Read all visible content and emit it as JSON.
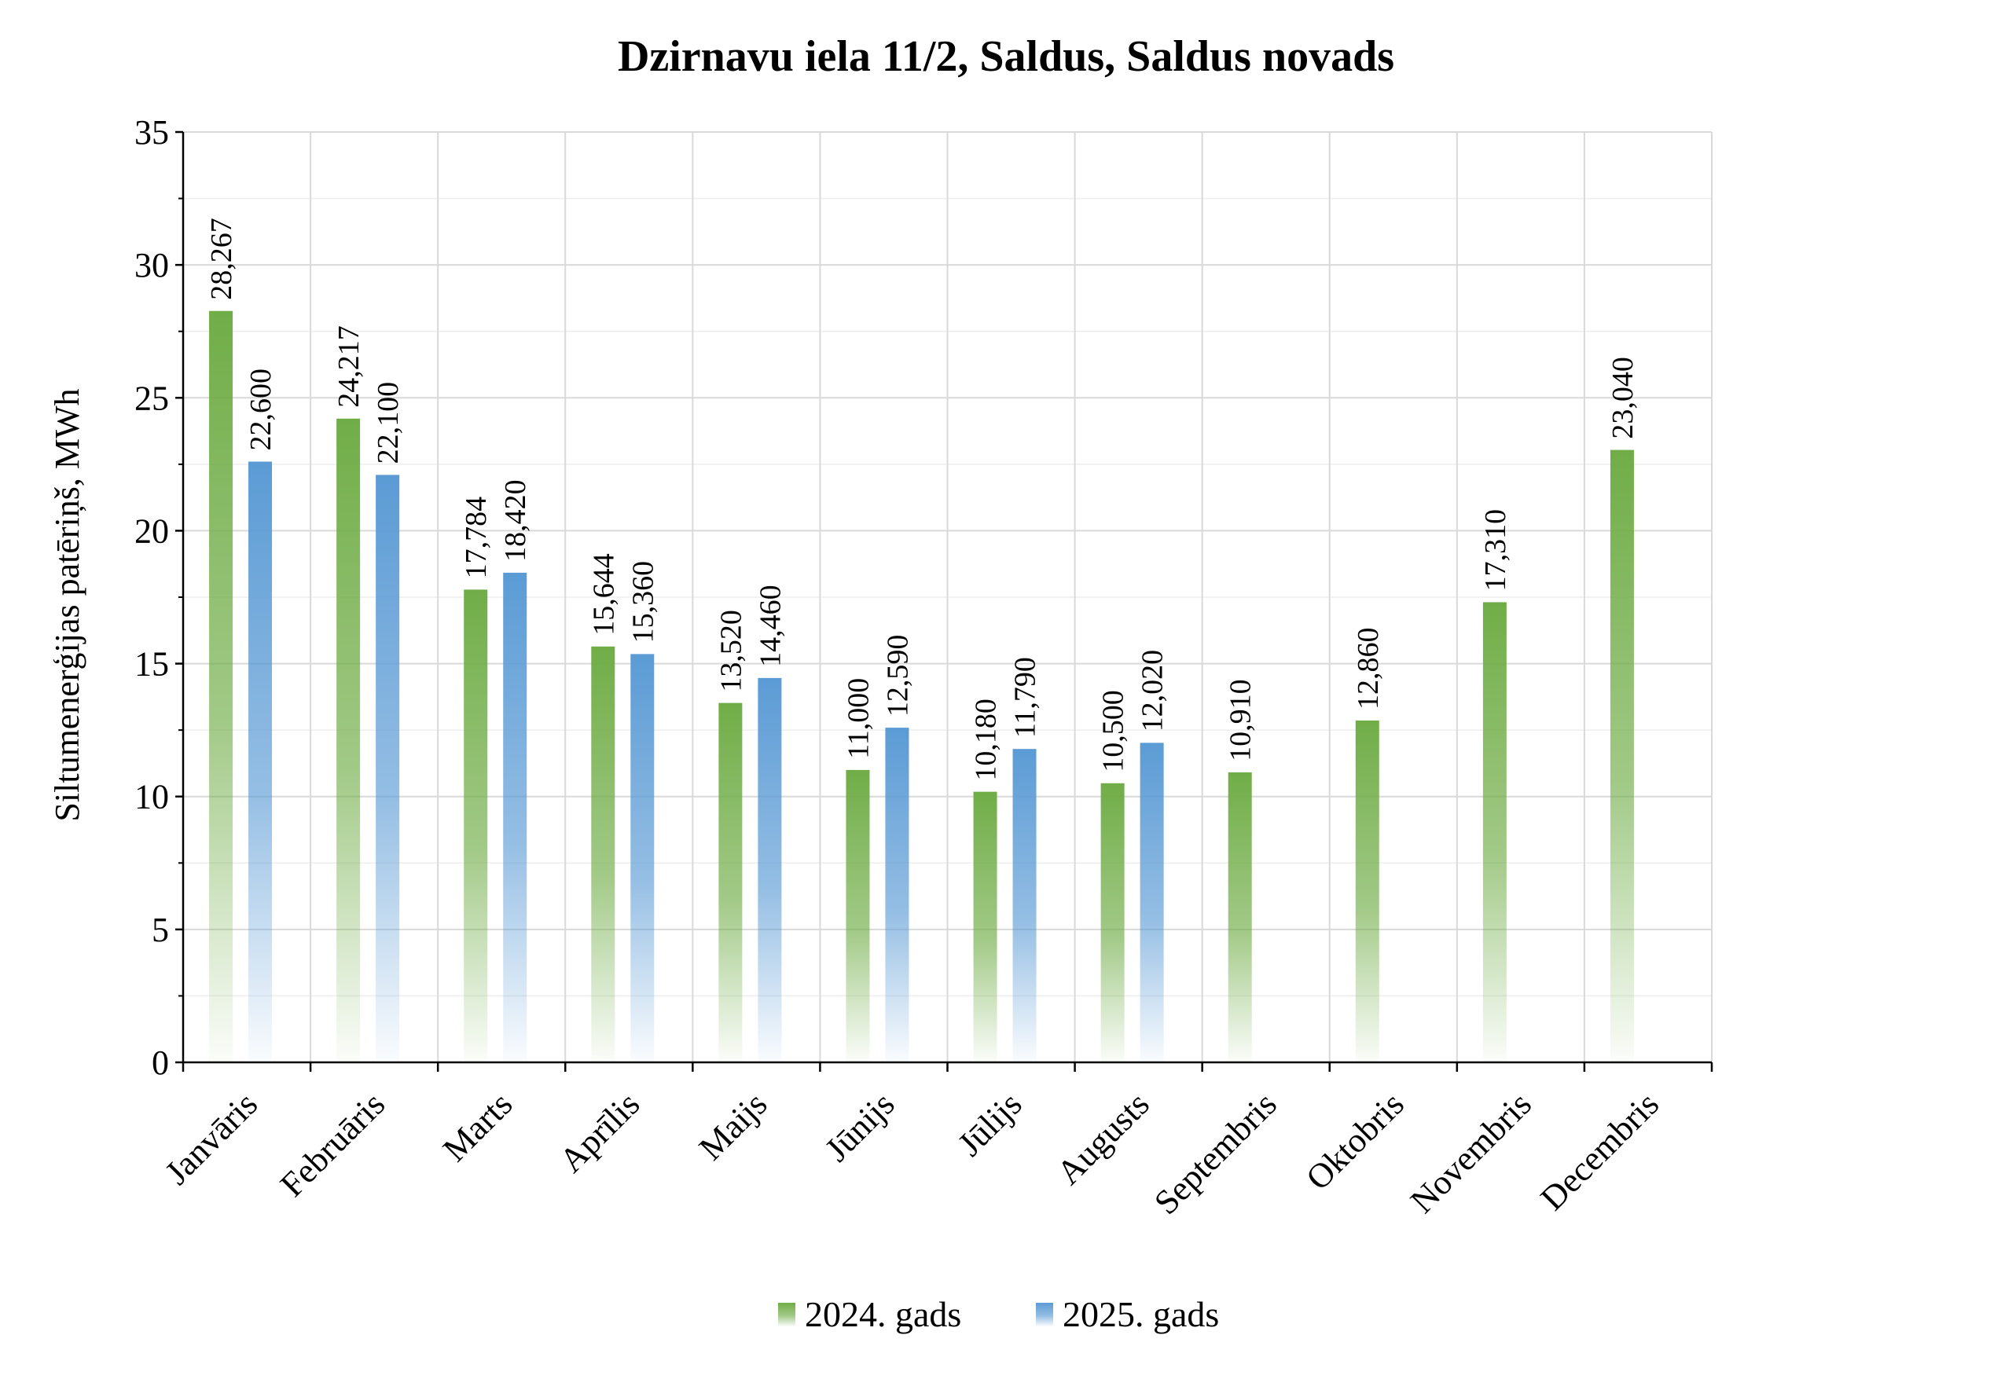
{
  "chart_data": {
    "type": "bar",
    "title": "Dzirnavu iela 11/2, Saldus, Saldus novads",
    "xlabel": "",
    "ylabel": "Siltumenerģijas patēriņš, MWh",
    "ylim": [
      0,
      35
    ],
    "yticks": [
      0,
      5,
      10,
      15,
      20,
      25,
      30,
      35
    ],
    "grid": true,
    "legend_position": "bottom",
    "categories": [
      "Janvāris",
      "Februāris",
      "Marts",
      "Aprīlis",
      "Maijs",
      "Jūnijs",
      "Jūlijs",
      "Augusts",
      "Septembris",
      "Oktobris",
      "Novembris",
      "Decembris"
    ],
    "series": [
      {
        "name": "2024. gads",
        "color": "#70ad47",
        "values": [
          28.267,
          24.217,
          17.784,
          15.644,
          13.52,
          11.0,
          10.18,
          10.5,
          10.91,
          12.86,
          17.31,
          23.04
        ],
        "labels": [
          "28,267",
          "24,217",
          "17,784",
          "15,644",
          "13,520",
          "11,000",
          "10,180",
          "10,500",
          "10,910",
          "12,860",
          "17,310",
          "23,040"
        ]
      },
      {
        "name": "2025. gads",
        "color": "#5b9bd5",
        "values": [
          22.6,
          22.1,
          18.42,
          15.36,
          14.46,
          12.59,
          11.79,
          12.02,
          null,
          null,
          null,
          null
        ],
        "labels": [
          "22,600",
          "22,100",
          "18,420",
          "15,360",
          "14,460",
          "12,590",
          "11,790",
          "12,020",
          null,
          null,
          null,
          null
        ]
      }
    ]
  }
}
